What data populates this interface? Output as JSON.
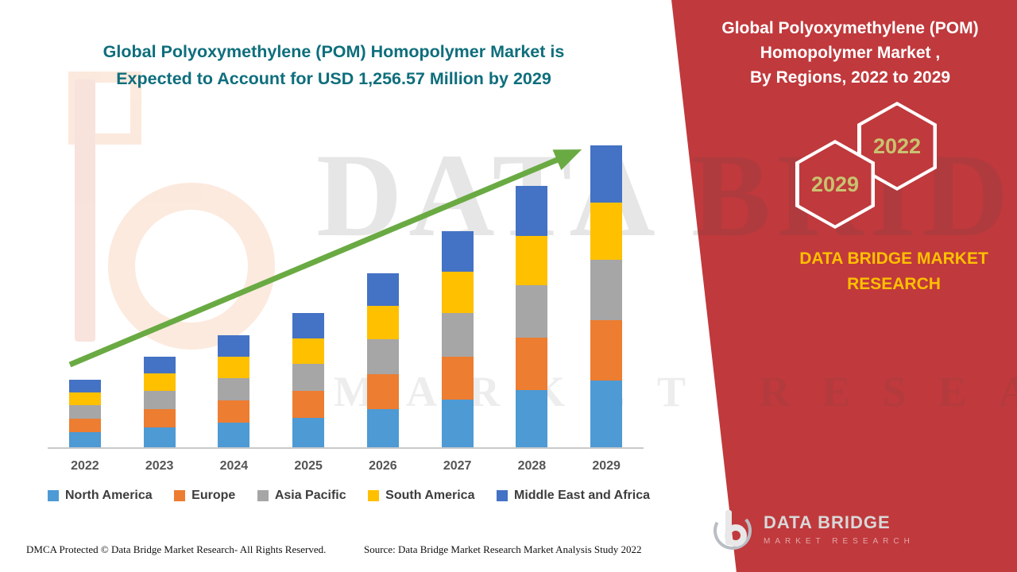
{
  "colors": {
    "teal": "#0E6E7C",
    "panel_red": "#C0393C",
    "brand_yellow": "#FFC000",
    "hex_text": "#C9C270",
    "arrow_green": "#6AAA43"
  },
  "left": {
    "title_line1": "Global Polyoxymethylene (POM) Homopolymer Market is",
    "title_line2": "Expected to Account for USD 1,256.57 Million by 2029",
    "footer_dmca": "DMCA Protected © Data Bridge Market Research- All Rights Reserved.",
    "footer_source": "Source: Data Bridge Market Research Market Analysis Study 2022"
  },
  "right_panel": {
    "title_line1": "Global Polyoxymethylene (POM)",
    "title_line2": "Homopolymer Market ,",
    "title_line3": "By Regions, 2022 to 2029",
    "hex_back_year": "2022",
    "hex_front_year": "2029",
    "brand_text": "DATA BRIDGE MARKET RESEARCH",
    "logo_name": "DATA BRIDGE",
    "logo_tagline": "MARKET RESEARCH"
  },
  "watermark": {
    "line1": "DATA BRIDGE",
    "line2": "MARKET RESEARCH"
  },
  "chart_data": {
    "type": "bar",
    "stacked": true,
    "title": "Global Polyoxymethylene (POM) Homopolymer Market is Expected to Account for USD 1,256.57 Million by 2029",
    "categories": [
      "2022",
      "2023",
      "2024",
      "2025",
      "2026",
      "2027",
      "2028",
      "2029"
    ],
    "series": [
      {
        "name": "North America",
        "color": "#4D9AD4",
        "values": [
          62,
          83,
          103,
          123,
          159,
          198,
          239,
          277
        ]
      },
      {
        "name": "Europe",
        "color": "#ED7D31",
        "values": [
          56,
          76,
          93,
          112,
          145,
          180,
          217,
          251
        ]
      },
      {
        "name": "Asia Pacific",
        "color": "#A6A6A6",
        "values": [
          56,
          76,
          93,
          112,
          145,
          180,
          217,
          251
        ]
      },
      {
        "name": "South America",
        "color": "#FFC000",
        "values": [
          53,
          72,
          89,
          106,
          138,
          171,
          207,
          239
        ]
      },
      {
        "name": "Middle East and Africa",
        "color": "#4472C4",
        "values": [
          53,
          71,
          89,
          106,
          137,
          169,
          206,
          238.57
        ]
      }
    ],
    "totals": [
      280,
      378,
      467,
      559,
      724,
      898,
      1086,
      1256.57
    ],
    "unit": "USD Million",
    "ylim": [
      0,
      1315
    ],
    "xlabel": "",
    "ylabel": "",
    "grid": false,
    "legend_position": "bottom",
    "trend_arrow": true
  }
}
